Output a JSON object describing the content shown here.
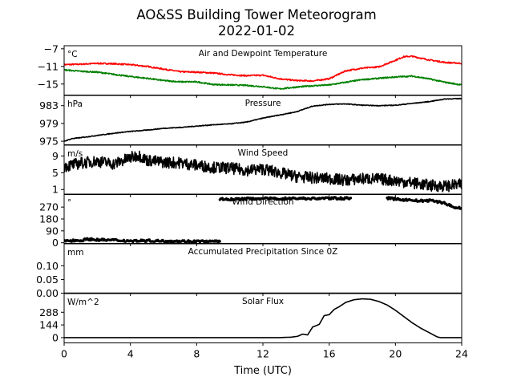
{
  "title": "AO&SS Building Tower Meteorogram",
  "subtitle": "2022-01-02",
  "chart_data": {
    "type": "line",
    "title": "AO&SS Building Tower Meteorogram",
    "subtitle": "2022-01-02",
    "xlabel": "Time (UTC)",
    "xlim": [
      0,
      24
    ],
    "xticks": [
      0,
      4,
      8,
      12,
      16,
      20,
      24
    ],
    "panels": [
      {
        "title": "Air and Dewpoint Temperature",
        "unit": "°C",
        "ylim": [
          -17.5,
          -6.3
        ],
        "yticks": [
          -7,
          -11,
          -15
        ],
        "series": [
          {
            "color": "#ff0000",
            "x": [
              0,
              1,
              2,
              3,
              4,
              5,
              6,
              7,
              8,
              9,
              10,
              11,
              12,
              13,
              14,
              15,
              16,
              17,
              18,
              19,
              20,
              20.5,
              21,
              22,
              23,
              24
            ],
            "y": [
              -10.6,
              -10.5,
              -10.3,
              -10.4,
              -10.6,
              -11.0,
              -11.6,
              -12.2,
              -12.3,
              -12.5,
              -12.9,
              -13.1,
              -13.0,
              -13.8,
              -14.2,
              -14.3,
              -13.8,
              -12.0,
              -11.4,
              -11.1,
              -9.6,
              -8.8,
              -8.7,
              -9.5,
              -10.1,
              -10.3
            ]
          },
          {
            "color": "#008000",
            "x": [
              0,
              1,
              2,
              3,
              4,
              5,
              6,
              7,
              8,
              9,
              10,
              11,
              12,
              13,
              14,
              15,
              16,
              17,
              18,
              19,
              20,
              21,
              22,
              23,
              24
            ],
            "y": [
              -11.8,
              -12.1,
              -12.3,
              -12.8,
              -13.3,
              -13.7,
              -14.2,
              -14.5,
              -14.5,
              -15.1,
              -15.2,
              -15.3,
              -15.6,
              -16.1,
              -15.7,
              -15.4,
              -15.2,
              -14.6,
              -14.0,
              -13.7,
              -13.4,
              -13.2,
              -13.8,
              -14.6,
              -15.2
            ]
          }
        ]
      },
      {
        "title": "Pressure",
        "unit": "hPa",
        "ylim": [
          974.2,
          985.3
        ],
        "yticks": [
          983,
          979,
          975
        ],
        "series": [
          {
            "color": "#000000",
            "x": [
              0,
              0.5,
              1,
              2,
              3,
              4,
              5,
              6,
              7,
              8,
              9,
              10,
              11,
              12,
              13,
              14,
              15,
              16,
              17,
              18,
              19,
              20,
              21,
              22,
              23,
              24
            ],
            "y": [
              975.0,
              975.6,
              975.8,
              976.3,
              976.8,
              977.2,
              977.5,
              977.9,
              978.1,
              978.4,
              978.7,
              978.9,
              979.3,
              980.2,
              980.9,
              981.6,
              982.9,
              983.3,
              983.4,
              983.1,
              983.0,
              983.1,
              983.5,
              983.9,
              984.5,
              984.6
            ]
          }
        ]
      },
      {
        "title": "Wind Speed",
        "unit": "m/s",
        "ylim": [
          -0.2,
          11.6
        ],
        "yticks": [
          9,
          5,
          1
        ],
        "series": [
          {
            "color": "#000000",
            "x": [
              0,
              1,
              2,
              3,
              4,
              4.5,
              5,
              6,
              7,
              8,
              9,
              10,
              11,
              12,
              13,
              14,
              15,
              16,
              17,
              18,
              19,
              20,
              21,
              22,
              23,
              24
            ],
            "y": [
              6.5,
              7.3,
              7.8,
              7.1,
              8.6,
              9.2,
              8.0,
              7.5,
              7.4,
              6.8,
              6.3,
              6.1,
              5.6,
              5.9,
              5.0,
              4.1,
              3.8,
              3.6,
              3.2,
              3.6,
              3.5,
              3.1,
              2.6,
              2.0,
              1.8,
              2.2
            ]
          }
        ]
      },
      {
        "title": "Wind Direction",
        "unit": "°",
        "ylim": [
          -5,
          368
        ],
        "yticks": [
          270,
          180,
          90,
          0
        ],
        "series": [
          {
            "color": "#000000",
            "x": [
              0,
              1,
              1.5,
              2,
              3,
              4,
              5,
              6,
              7,
              8,
              9,
              9.4
            ],
            "y": [
              15,
              18,
              28,
              22,
              20,
              14,
              16,
              13,
              12,
              11,
              9,
              10
            ]
          },
          {
            "color": "#000000",
            "x": [
              9.4,
              10,
              11,
              12,
              13,
              14,
              15,
              16,
              17,
              17.3
            ],
            "y": [
              330,
              328,
              332,
              335,
              333,
              336,
              334,
              337,
              336,
              338
            ]
          },
          {
            "color": "#000000",
            "x": [
              19.5,
              20,
              21,
              21.5,
              22,
              22.5,
              23,
              23.5,
              24
            ],
            "y": [
              338,
              330,
              322,
              316,
              320,
              312,
              300,
              268,
              262
            ]
          }
        ]
      },
      {
        "title": "Accumulated Precipitation Since 0Z",
        "unit": "mm",
        "ylim": [
          0,
          0.18
        ],
        "yticks": [
          0.1,
          0.05,
          0.0
        ],
        "series": [
          {
            "color": "#000000",
            "x": [
              0,
              24
            ],
            "y": [
              0,
              0
            ]
          }
        ]
      },
      {
        "title": "Solar Flux",
        "unit": "W/m^2",
        "ylim": [
          -60,
          500
        ],
        "yticks": [
          288,
          144,
          0
        ],
        "series": [
          {
            "color": "#000000",
            "x": [
              0,
              13,
              13.7,
              14.1,
              14.4,
              14.7,
              15,
              15.4,
              15.7,
              16,
              16.3,
              16.6,
              17,
              17.5,
              18,
              18.5,
              19,
              19.5,
              20,
              20.5,
              21,
              21.5,
              22,
              22.5,
              22.7,
              24
            ],
            "y": [
              0,
              0,
              5,
              15,
              40,
              30,
              120,
              150,
              250,
              260,
              320,
              350,
              400,
              430,
              440,
              435,
              410,
              370,
              310,
              240,
              170,
              110,
              60,
              10,
              0,
              0
            ]
          }
        ]
      }
    ]
  }
}
